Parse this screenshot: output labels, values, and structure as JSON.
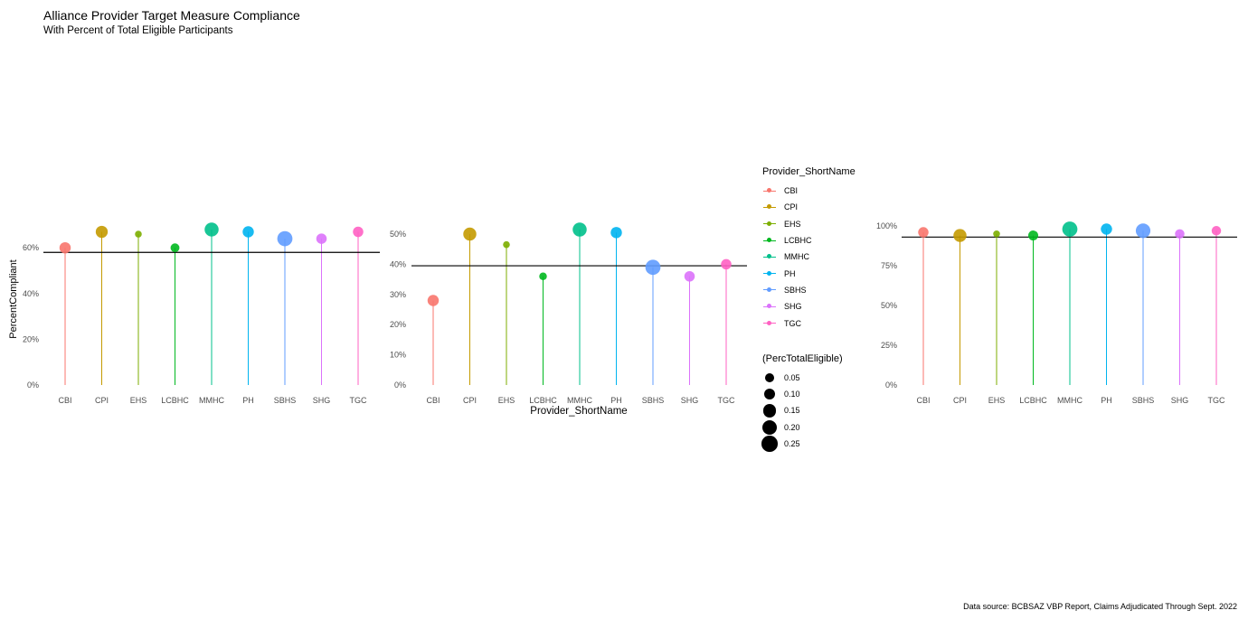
{
  "title": "Alliance Provider Target Measure Compliance",
  "subtitle": "With Percent of Total Eligible Participants",
  "caption": "Data source: BCBSAZ VBP Report, Claims Adjudicated Through Sept. 2022",
  "y_axis_label": "PercentCompliant",
  "x_axis_label": "Provider_ShortName",
  "legend": {
    "color_title": "Provider_ShortName",
    "size_title": "(PercTotalEligible)",
    "size_values": [
      "0.05",
      "0.10",
      "0.15",
      "0.20",
      "0.25"
    ]
  },
  "colors": {
    "CBI": "#F8766D",
    "CPI": "#C49A00",
    "EHS": "#7CAE00",
    "LCBHC": "#00B81F",
    "MMHC": "#00C08B",
    "PH": "#00B4EF",
    "SBHS": "#619CFF",
    "SHG": "#DB72FB",
    "TGC": "#FF61C3"
  },
  "chart_data": [
    {
      "type": "scatter",
      "style": "lollipop",
      "categories": [
        "CBI",
        "CPI",
        "EHS",
        "LCBHC",
        "MMHC",
        "PH",
        "SBHS",
        "SHG",
        "TGC"
      ],
      "values": [
        0.6,
        0.67,
        0.66,
        0.6,
        0.68,
        0.67,
        0.64,
        0.64,
        0.67
      ],
      "size": [
        0.1,
        0.12,
        0.02,
        0.05,
        0.18,
        0.1,
        0.22,
        0.08,
        0.08
      ],
      "reference_line": 0.58,
      "ylim": [
        0,
        0.7
      ],
      "y_ticks": [
        0,
        0.2,
        0.4,
        0.6
      ],
      "y_tick_labels": [
        "0%",
        "20%",
        "40%",
        "60%"
      ]
    },
    {
      "type": "scatter",
      "style": "lollipop",
      "categories": [
        "CBI",
        "CPI",
        "EHS",
        "LCBHC",
        "MMHC",
        "PH",
        "SBHS",
        "SHG",
        "TGC"
      ],
      "values": [
        0.28,
        0.5,
        0.465,
        0.36,
        0.515,
        0.505,
        0.39,
        0.36,
        0.4
      ],
      "size": [
        0.1,
        0.15,
        0.02,
        0.03,
        0.18,
        0.1,
        0.22,
        0.08,
        0.08
      ],
      "reference_line": 0.395,
      "ylim": [
        0,
        0.55
      ],
      "y_ticks": [
        0,
        0.1,
        0.2,
        0.3,
        0.4,
        0.5
      ],
      "y_tick_labels": [
        "0%",
        "10%",
        "20%",
        "30%",
        "40%",
        "50%"
      ]
    },
    {
      "type": "scatter",
      "style": "lollipop",
      "categories": [
        "CBI",
        "CPI",
        "EHS",
        "LCBHC",
        "MMHC",
        "PH",
        "SBHS",
        "SHG",
        "TGC"
      ],
      "values": [
        0.96,
        0.94,
        0.95,
        0.94,
        0.98,
        0.98,
        0.97,
        0.95,
        0.97
      ],
      "size": [
        0.08,
        0.15,
        0.02,
        0.07,
        0.22,
        0.1,
        0.2,
        0.06,
        0.06
      ],
      "reference_line": 0.93,
      "ylim": [
        0,
        1.0
      ],
      "y_ticks": [
        0,
        0.25,
        0.5,
        0.75,
        1.0
      ],
      "y_tick_labels": [
        "0%",
        "25%",
        "50%",
        "75%",
        "100%"
      ]
    }
  ]
}
